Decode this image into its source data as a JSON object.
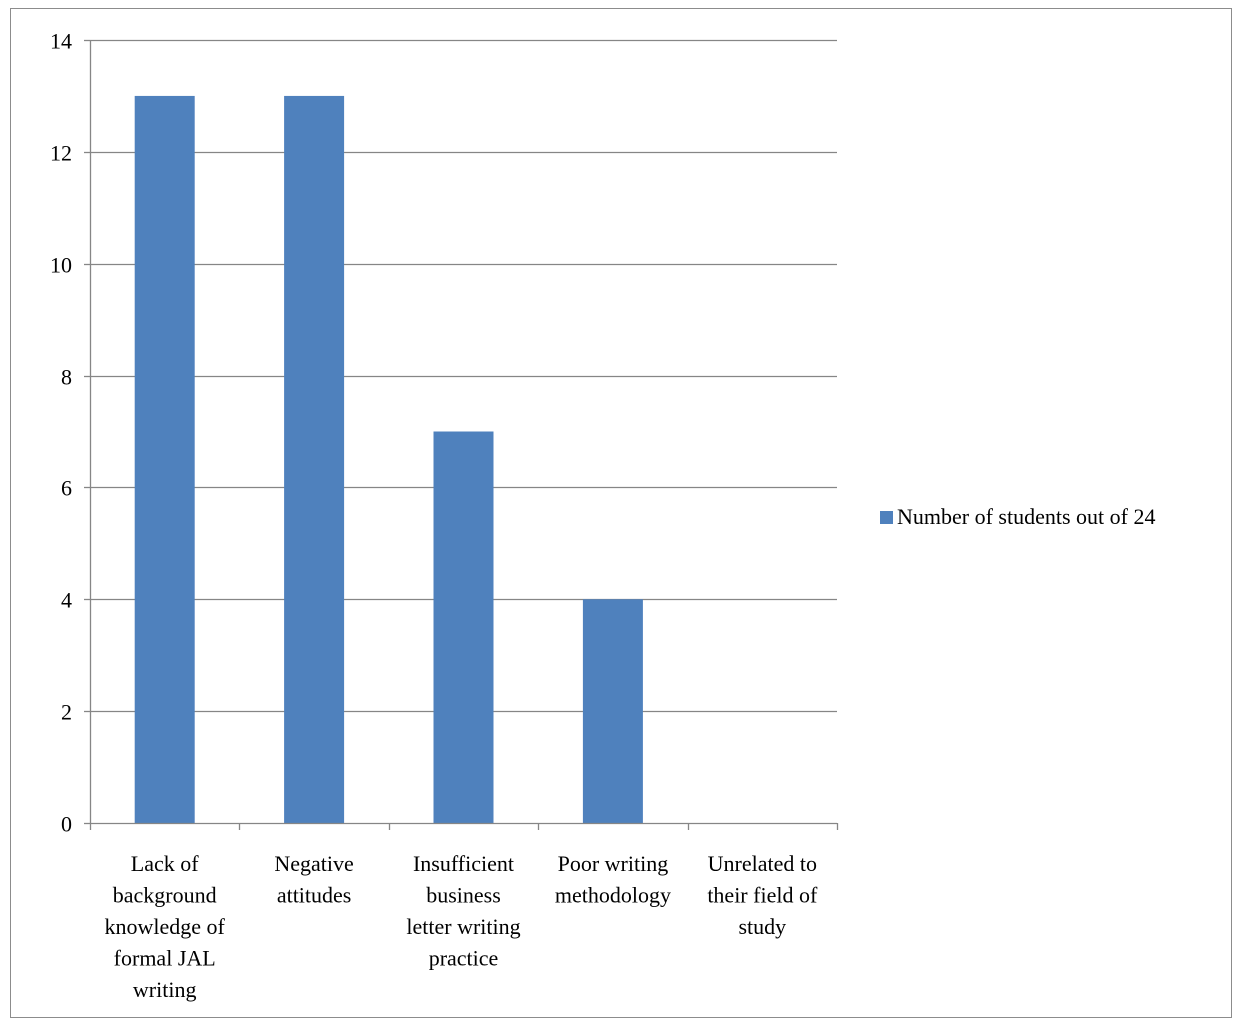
{
  "chart_data": {
    "type": "bar",
    "title": "",
    "xlabel": "",
    "ylabel": "",
    "categories": [
      [
        "Lack of",
        "background",
        "knowledge of",
        "formal JAL",
        "writing"
      ],
      [
        "Negative",
        "attitudes"
      ],
      [
        "Insufficient",
        "business",
        "letter writing",
        "practice"
      ],
      [
        "Poor writing",
        "methodology"
      ],
      [
        "Unrelated to",
        "their field of",
        "study"
      ]
    ],
    "series": [
      {
        "name": "Number of students out of 24",
        "values": [
          13,
          13,
          7,
          4,
          0
        ],
        "color": "#4f81bd"
      }
    ],
    "ylim": [
      0,
      14
    ],
    "yticks": [
      0,
      2,
      4,
      6,
      8,
      10,
      12,
      14
    ],
    "grid": true,
    "legend": "right",
    "colors": {
      "grid": "#868686",
      "axis": "#868686",
      "frame": "#8c8c8c"
    }
  }
}
